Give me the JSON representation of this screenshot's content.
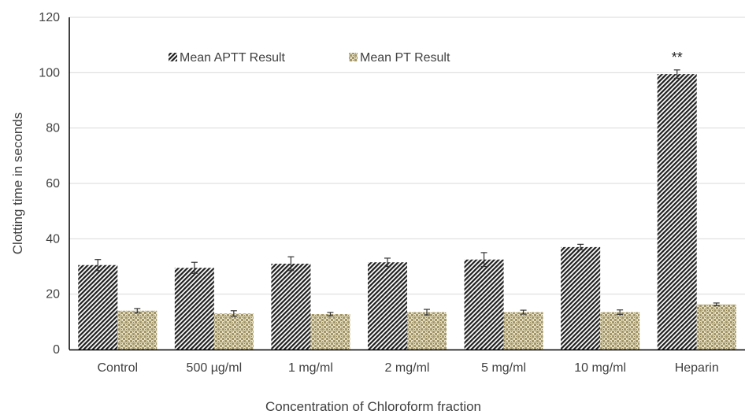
{
  "chart_data": {
    "type": "bar",
    "title": "",
    "xlabel": "Concentration of Chloroform fraction",
    "ylabel": "Clotting time in seconds",
    "categories": [
      "Control",
      "500 µg/ml",
      "1 mg/ml",
      "2 mg/ml",
      "5 mg/ml",
      "10 mg/ml",
      "Heparin"
    ],
    "ylim": [
      0,
      120
    ],
    "yticks": [
      "0",
      "20",
      "40",
      "60",
      "80",
      "100",
      "120"
    ],
    "grid": true,
    "legend_position": "top",
    "series": [
      {
        "name": "Mean APTT Result",
        "pattern": "diagonal-hatch",
        "color": "#222222",
        "values": [
          30.5,
          29.5,
          31,
          31.5,
          32.5,
          37,
          99.5
        ],
        "errors": [
          2,
          2,
          2.5,
          1.5,
          2.5,
          1,
          1.5
        ]
      },
      {
        "name": "Mean PT Result",
        "pattern": "crosshatch",
        "color": "#9b8f5f",
        "values": [
          14,
          13,
          12.8,
          13.5,
          13.5,
          13.5,
          16.3
        ],
        "errors": [
          0.8,
          1,
          0.6,
          1,
          0.7,
          0.8,
          0.5
        ]
      }
    ],
    "annotations": [
      {
        "text": "**",
        "category": "Heparin",
        "series": "Mean APTT Result"
      }
    ]
  }
}
